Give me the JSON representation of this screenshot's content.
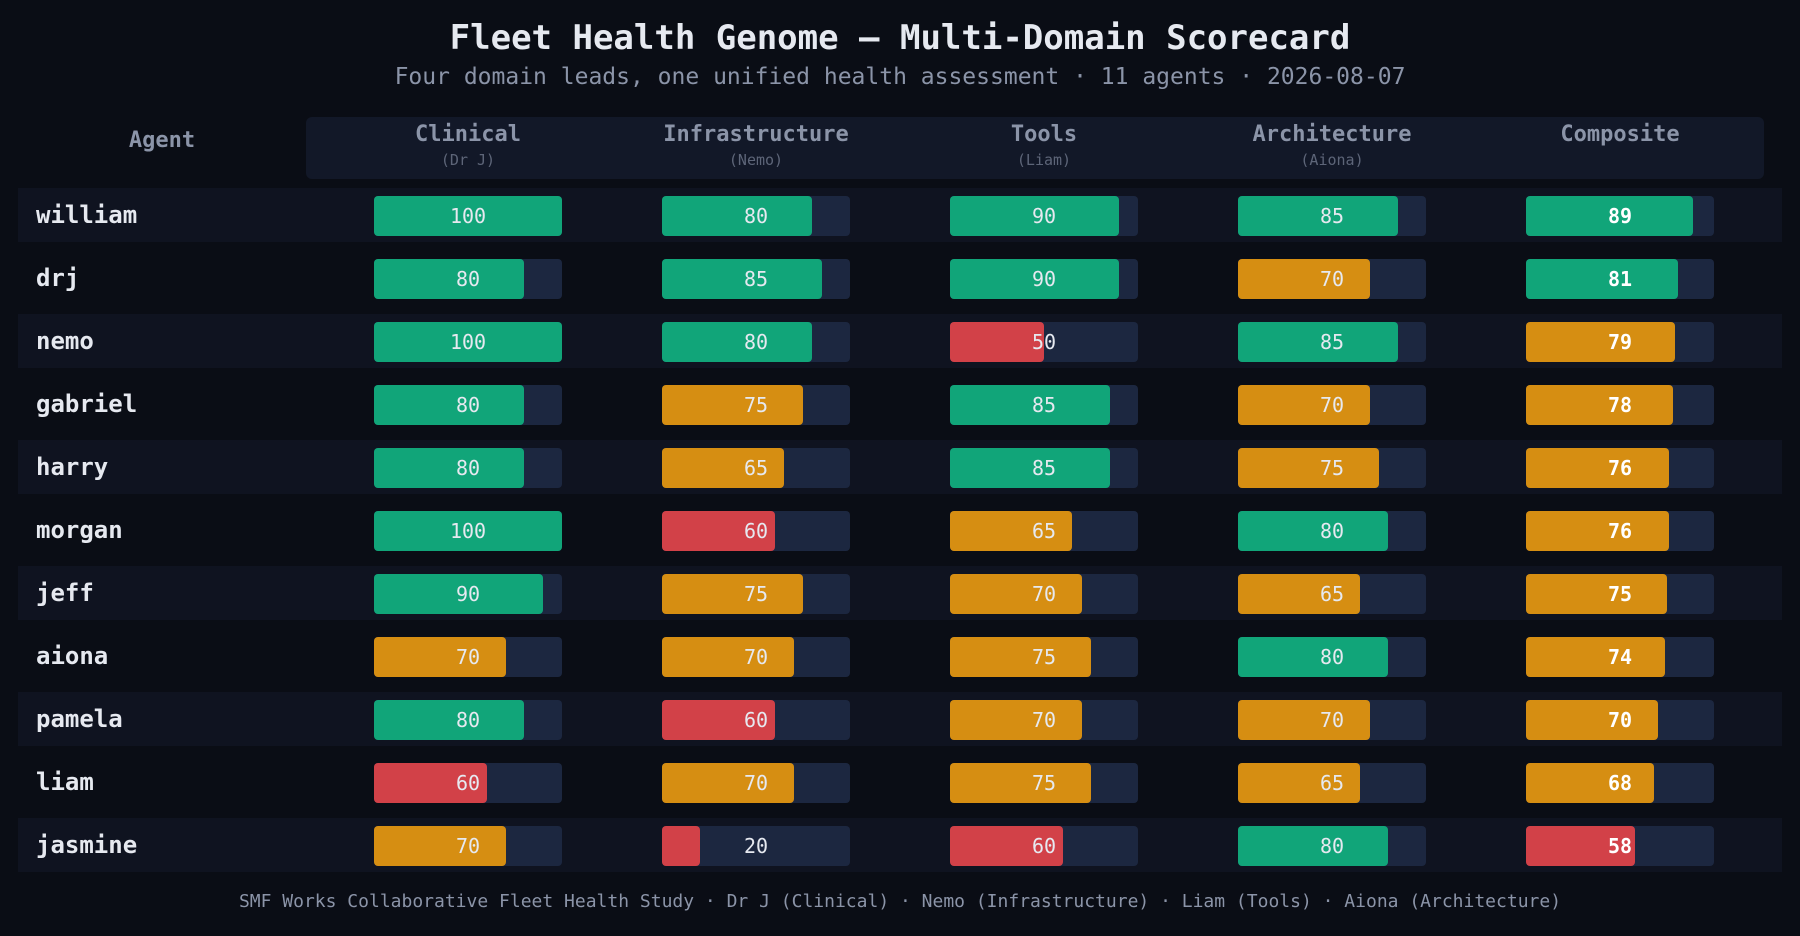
{
  "title": "Fleet Health Genome — Multi-Domain Scorecard",
  "subtitle": "Four domain leads, one unified health assessment · 11 agents · 2026-08-07",
  "footer": "SMF Works Collaborative Fleet Health Study · Dr J (Clinical) · Nemo (Infrastructure) · Liam (Tools) · Aiona (Architecture)",
  "colors": {
    "good": "#11a579",
    "mid": "#d68e12",
    "bad": "#d24148",
    "track": "#1c2740"
  },
  "chart_data": {
    "type": "table",
    "row_header": "Agent",
    "columns": [
      {
        "name": "Clinical",
        "lead": "(Dr J)"
      },
      {
        "name": "Infrastructure",
        "lead": "(Nemo)"
      },
      {
        "name": "Tools",
        "lead": "(Liam)"
      },
      {
        "name": "Architecture",
        "lead": "(Aiona)"
      },
      {
        "name": "Composite",
        "lead": ""
      }
    ],
    "value_range": [
      0,
      100
    ],
    "rows": [
      {
        "agent": "william",
        "values": [
          100,
          80,
          90,
          85,
          89
        ]
      },
      {
        "agent": "drj",
        "values": [
          80,
          85,
          90,
          70,
          81
        ]
      },
      {
        "agent": "nemo",
        "values": [
          100,
          80,
          50,
          85,
          79
        ]
      },
      {
        "agent": "gabriel",
        "values": [
          80,
          75,
          85,
          70,
          78
        ]
      },
      {
        "agent": "harry",
        "values": [
          80,
          65,
          85,
          75,
          76
        ]
      },
      {
        "agent": "morgan",
        "values": [
          100,
          60,
          65,
          80,
          76
        ]
      },
      {
        "agent": "jeff",
        "values": [
          90,
          75,
          70,
          65,
          75
        ]
      },
      {
        "agent": "aiona",
        "values": [
          70,
          70,
          75,
          80,
          74
        ]
      },
      {
        "agent": "pamela",
        "values": [
          80,
          60,
          70,
          70,
          70
        ]
      },
      {
        "agent": "liam",
        "values": [
          60,
          70,
          75,
          65,
          68
        ]
      },
      {
        "agent": "jasmine",
        "values": [
          70,
          20,
          60,
          80,
          58
        ]
      }
    ]
  }
}
